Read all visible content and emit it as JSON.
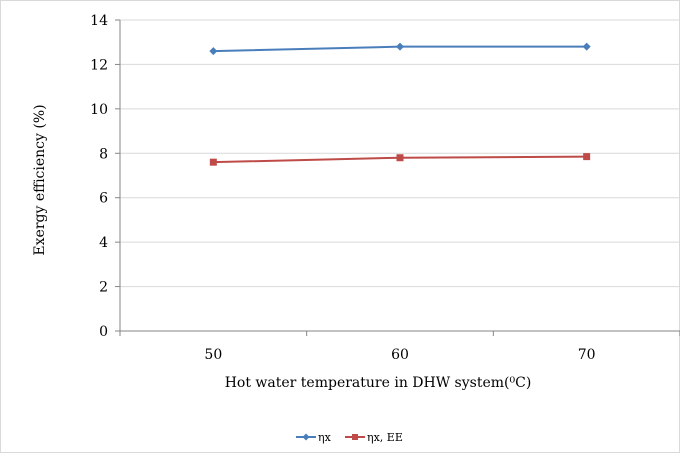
{
  "chart_data": {
    "type": "line",
    "categories": [
      "50",
      "60",
      "70"
    ],
    "series": [
      {
        "name": "ηx",
        "values": [
          12.6,
          12.8,
          12.8
        ],
        "color": "#4a7ebb",
        "marker": "diamond"
      },
      {
        "name": "ηx, EE",
        "values": [
          7.6,
          7.8,
          7.85
        ],
        "color": "#be4b48",
        "marker": "square"
      }
    ],
    "title": "",
    "xlabel": "Hot water temperature in DHW system(⁰C)",
    "ylabel": "Exergy efficiency (%)",
    "ylim": [
      0,
      14
    ],
    "yticks": [
      0,
      2,
      4,
      6,
      8,
      10,
      12,
      14
    ],
    "grid": "horizontal",
    "legend_position": "bottom",
    "colors": {
      "grid": "#d9d9d9",
      "axis": "#868686"
    }
  }
}
